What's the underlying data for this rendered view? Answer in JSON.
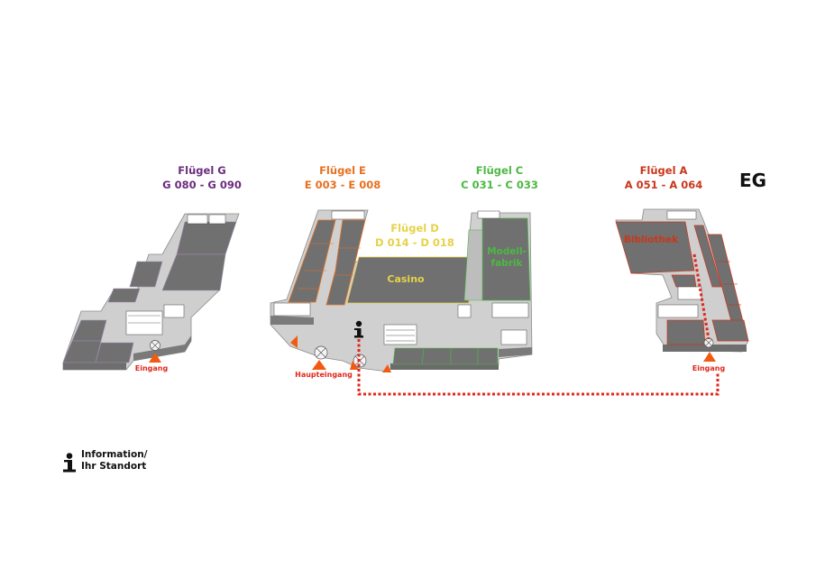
{
  "floor": "EG",
  "colors": {
    "wing_g": "#6b2c7f",
    "wing_e": "#e8701e",
    "wing_d": "#e6d24a",
    "wing_c": "#4cb843",
    "wing_a": "#c9371b",
    "route": "#e0271b",
    "entrance_marker": "#f25a12",
    "room_fill": "#707070",
    "corridor_fill": "#c9c9c9"
  },
  "wings": [
    {
      "id": "g",
      "name": "Flügel G",
      "range": "G 080 - G 090"
    },
    {
      "id": "e",
      "name": "Flügel E",
      "range": "E 003 - E 008"
    },
    {
      "id": "d",
      "name": "Flügel D",
      "range": "D 014 - D 018"
    },
    {
      "id": "c",
      "name": "Flügel C",
      "range": "C 031 - C 033"
    },
    {
      "id": "a",
      "name": "Flügel A",
      "range": "A 051 - A 064"
    }
  ],
  "places": {
    "casino": "Casino",
    "modellfabrik_1": "Modell-",
    "modellfabrik_2": "fabrik",
    "bibliothek": "Bibliothek"
  },
  "entrances": {
    "g": "Eingang",
    "main": "Haupteingang",
    "a": "Eingang"
  },
  "legend": {
    "icon": "info-icon",
    "line1": "Information/",
    "line2": "Ihr Standort"
  }
}
